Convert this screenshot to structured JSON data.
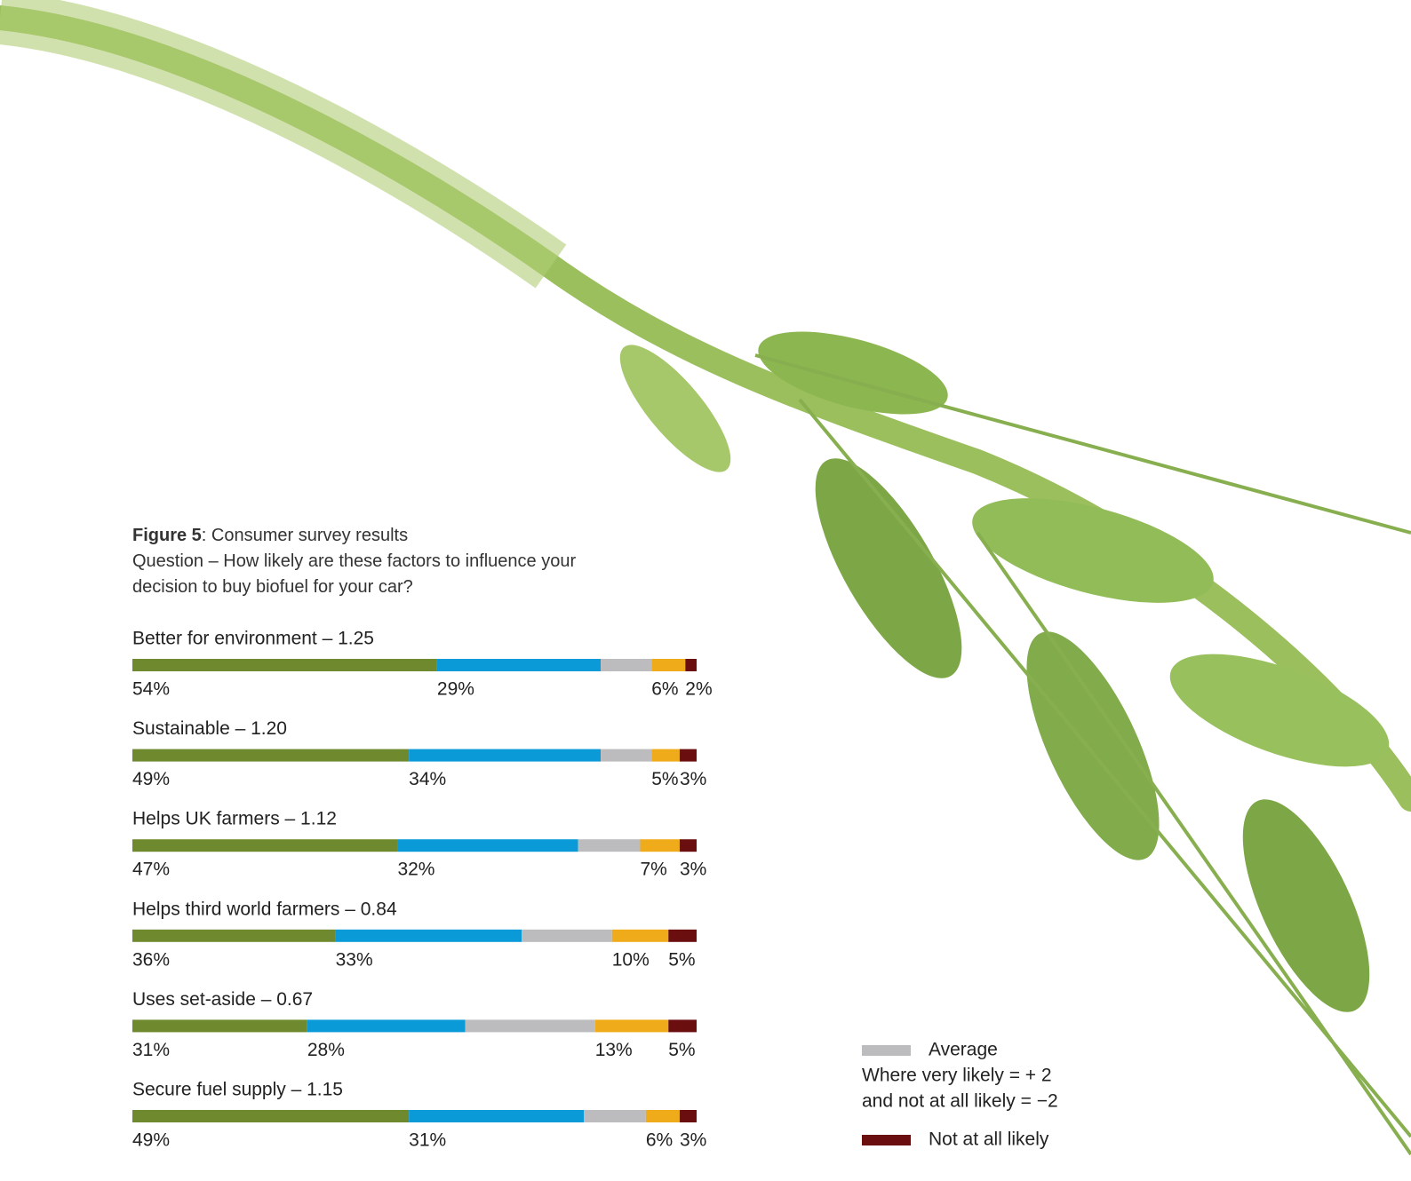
{
  "chart_data": {
    "type": "stacked_bar",
    "figure_label": "Figure 5",
    "title": ": Consumer survey results",
    "subtitle": "Question – How likely are these factors to influence your decision to buy biofuel for your car?",
    "categories": [
      "Better for environment – 1.25",
      "Sustainable – 1.20",
      "Helps UK farmers – 1.12",
      "Helps third world farmers – 0.84",
      "Uses set-aside – 0.67",
      "Secure fuel supply – 1.15"
    ],
    "xlim": [
      0,
      100
    ],
    "series": [
      {
        "color": "#6f8a2e",
        "label_color": "#7d9632",
        "values": [
          54,
          49,
          47,
          36,
          31,
          49
        ],
        "value_labels": [
          "54%",
          "49%",
          "47%",
          "36%",
          "31%",
          "49%"
        ]
      },
      {
        "color": "#0a9ad7",
        "label_color": "#1a9ad6",
        "values": [
          29,
          34,
          32,
          33,
          28,
          31
        ],
        "value_labels": [
          "29%",
          "34%",
          "32%",
          "33%",
          "28%",
          "31%"
        ]
      },
      {
        "name": "Average",
        "color": "#bcbcbe",
        "values": [
          9,
          9,
          11,
          16,
          23,
          11
        ]
      },
      {
        "color": "#f0ab1a",
        "label_color": "#f0ab1a",
        "values": [
          6,
          5,
          7,
          10,
          13,
          6
        ],
        "value_labels": [
          "6%",
          "5%",
          "7%",
          "10%",
          "13%",
          "6%"
        ]
      },
      {
        "name": "Not at all likely",
        "color": "#6b0e10",
        "label_color": "#6b1014",
        "values": [
          2,
          3,
          3,
          5,
          5,
          3
        ],
        "value_labels": [
          "2%",
          "3%",
          "3%",
          "5%",
          "5%",
          "3%"
        ]
      }
    ],
    "legend_note": [
      "Where very likely = + 2",
      "and not at all likely = −2"
    ]
  }
}
